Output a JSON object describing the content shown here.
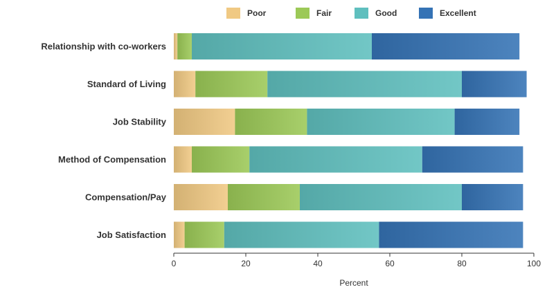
{
  "chart_data": {
    "type": "bar",
    "orientation": "horizontal",
    "stacked": true,
    "categories": [
      "Relationship with co-workers",
      "Standard of Living",
      "Job Stability",
      "Method of Compensation",
      "Compensation/Pay",
      "Job Satisfaction"
    ],
    "series": [
      {
        "name": "Poor",
        "color": "#f0c983",
        "values": [
          1,
          6,
          17,
          5,
          15,
          3
        ]
      },
      {
        "name": "Fair",
        "color": "#9cc957",
        "values": [
          4,
          20,
          20,
          16,
          20,
          11
        ]
      },
      {
        "name": "Good",
        "color": "#5fbfbe",
        "values": [
          50,
          54,
          41,
          48,
          45,
          43
        ]
      },
      {
        "name": "Excellent",
        "color": "#3573b5",
        "values": [
          41,
          18,
          18,
          28,
          17,
          40
        ]
      }
    ],
    "xlabel": "Percent",
    "ylabel": "",
    "xlim": [
      0,
      100
    ],
    "xticks": [
      0,
      20,
      40,
      60,
      80,
      100
    ],
    "grid": false,
    "legend_position": "top"
  }
}
